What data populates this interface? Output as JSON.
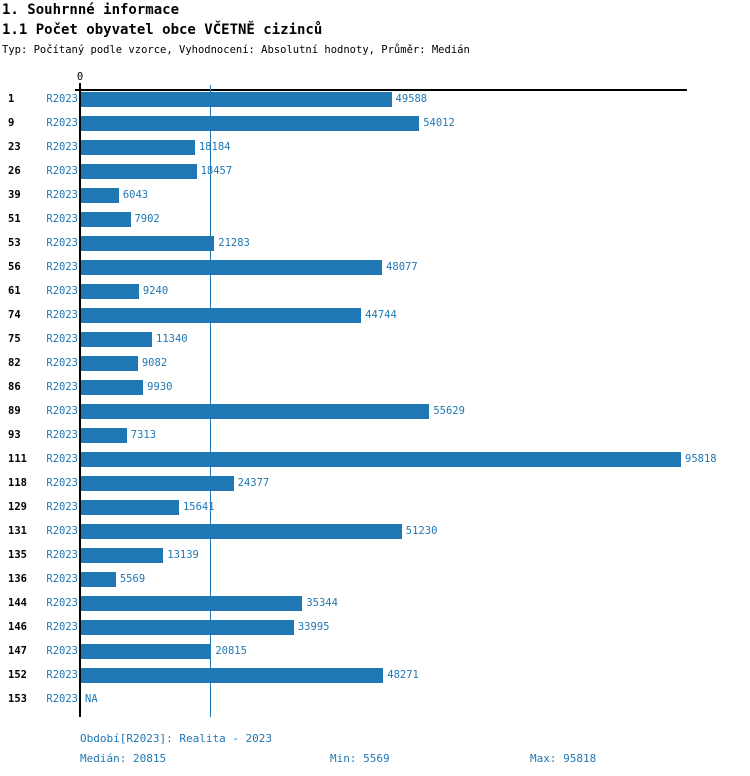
{
  "header": {
    "section_title": "1. Souhrnné informace",
    "subsection_title": "1.1 Počet obyvatel obce VČETNĚ cizinců",
    "meta": "Typ: Počítaný podle vzorce, Vyhodnocení: Absolutní hodnoty, Průměr: Medián"
  },
  "chart_data": {
    "type": "bar",
    "orientation": "horizontal",
    "title": "1.1 Počet obyvatel obce VČETNĚ cizinců",
    "zero_label": "0",
    "series_label": "R2023",
    "categories": [
      "1",
      "9",
      "23",
      "26",
      "39",
      "51",
      "53",
      "56",
      "61",
      "74",
      "75",
      "82",
      "86",
      "89",
      "93",
      "111",
      "118",
      "129",
      "131",
      "135",
      "136",
      "144",
      "146",
      "147",
      "152",
      "153"
    ],
    "values": [
      49588,
      54012,
      18184,
      18457,
      6043,
      7902,
      21283,
      48077,
      9240,
      44744,
      11340,
      9082,
      9930,
      55629,
      7313,
      95818,
      24377,
      15641,
      51230,
      13139,
      5569,
      35344,
      33995,
      20815,
      48271,
      null
    ],
    "value_labels": [
      "49588",
      "54012",
      "18184",
      "18457",
      "6043",
      "7902",
      "21283",
      "48077",
      "9240",
      "44744",
      "11340",
      "9082",
      "9930",
      "55629",
      "7313",
      "95818",
      "24377",
      "15641",
      "51230",
      "13139",
      "5569",
      "35344",
      "33995",
      "20815",
      "48271",
      "NA"
    ],
    "xlim": [
      0,
      95818
    ],
    "median": 20815,
    "min": 5569,
    "max": 95818,
    "grid": false,
    "legend": "none",
    "bar_color": "#1f77b4",
    "median_line_color": "#1f77b4",
    "axis_color": "#000000",
    "label_color": "#1f77b4"
  },
  "footer": {
    "period": "Období[R2023]: Realita - 2023",
    "median": "Medián: 20815",
    "min": "Min: 5569",
    "max": "Max: 95818"
  }
}
